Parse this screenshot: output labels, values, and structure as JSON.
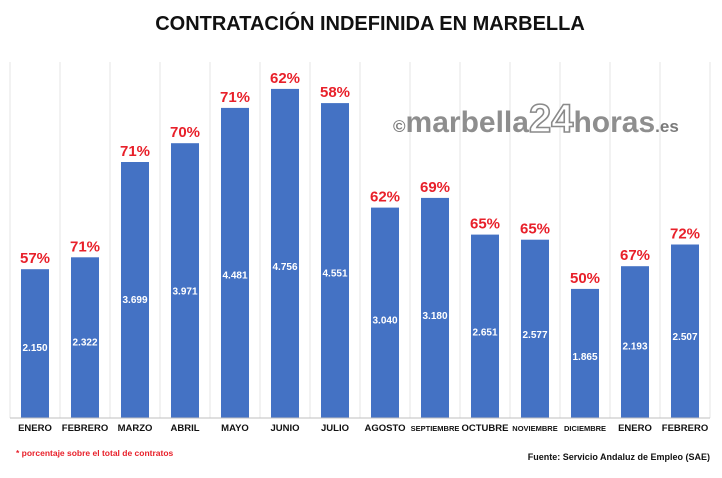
{
  "chart_data": {
    "type": "bar",
    "title": "CONTRATACIÓN INDEFINIDA EN MARBELLA",
    "categories": [
      "ENERO",
      "FEBRERO",
      "MARZO",
      "ABRIL",
      "MAYO",
      "JUNIO",
      "JULIO",
      "AGOSTO",
      "SEPTIEMBRE",
      "OCTUBRE",
      "NOVIEMBRE",
      "DICIEMBRE",
      "ENERO",
      "FEBRERO"
    ],
    "values": [
      2150,
      2322,
      3699,
      3971,
      4481,
      4756,
      4551,
      3040,
      3180,
      2651,
      2577,
      1865,
      2193,
      2507
    ],
    "value_labels": [
      "2.150",
      "2.322",
      "3.699",
      "3.971",
      "4.481",
      "4.756",
      "4.551",
      "3.040",
      "3.180",
      "2.651",
      "2.577",
      "1.865",
      "2.193",
      "2.507"
    ],
    "percent_labels": [
      "57%",
      "71%",
      "71%",
      "70%",
      "71%",
      "62%",
      "58%",
      "62%",
      "69%",
      "65%",
      "65%",
      "50%",
      "67%",
      "72%"
    ],
    "ylim": [
      0,
      5000
    ],
    "grid": false,
    "bar_color": "#4472c4",
    "percent_color": "#e8202a"
  },
  "footnote": "* porcentaje sobre el total de contratos",
  "source": "Fuente: Servicio Andaluz de Empleo (SAE)",
  "watermark": {
    "copyright": "©",
    "part1": "marbella",
    "part2": "24",
    "part3": "horas",
    "part4": ".es"
  }
}
